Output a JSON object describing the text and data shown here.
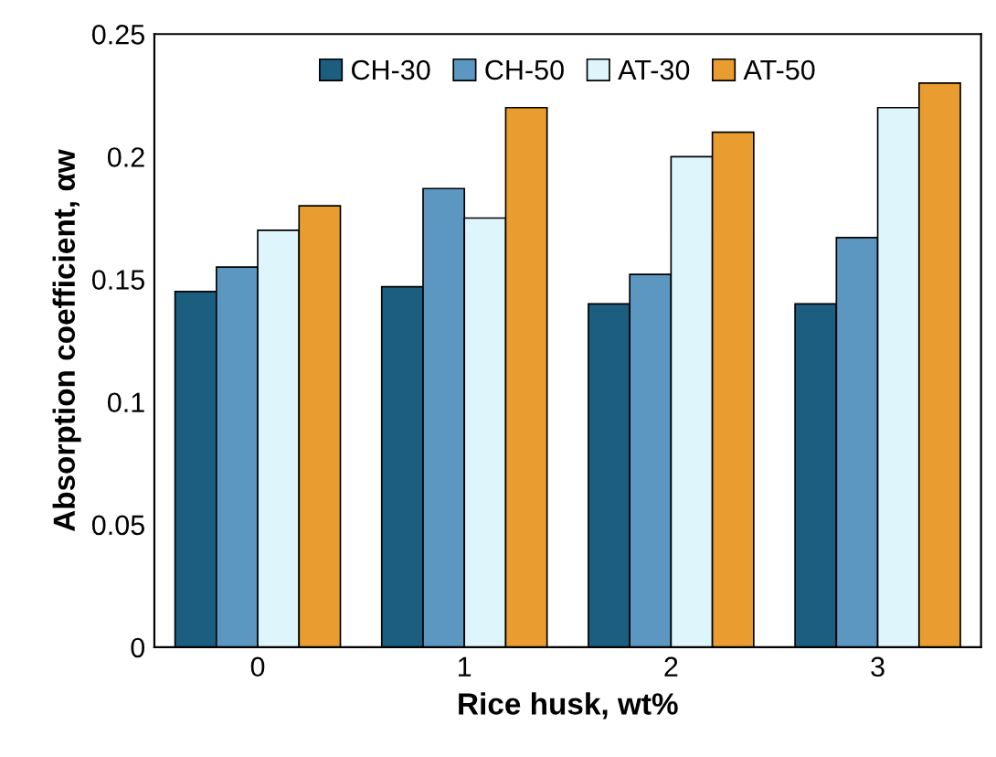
{
  "chart_data": {
    "type": "bar",
    "xlabel": "Rice husk, wt%",
    "ylabel": "Absorption coefficient, αw",
    "categories": [
      "0",
      "1",
      "2",
      "3"
    ],
    "series": [
      {
        "name": "CH-30",
        "color": "#1b5e80",
        "values": [
          0.145,
          0.147,
          0.14,
          0.14
        ]
      },
      {
        "name": "CH-50",
        "color": "#5b97c0",
        "values": [
          0.155,
          0.187,
          0.152,
          0.167
        ]
      },
      {
        "name": "AT-30",
        "color": "#dff5fc",
        "values": [
          0.17,
          0.175,
          0.2,
          0.22
        ]
      },
      {
        "name": "AT-50",
        "color": "#e99c2f",
        "values": [
          0.18,
          0.22,
          0.21,
          0.23
        ]
      }
    ],
    "ylim": [
      0,
      0.25
    ],
    "yticks": [
      0,
      0.05,
      0.1,
      0.15,
      0.2,
      0.25
    ],
    "grid": false,
    "legend": "top"
  }
}
